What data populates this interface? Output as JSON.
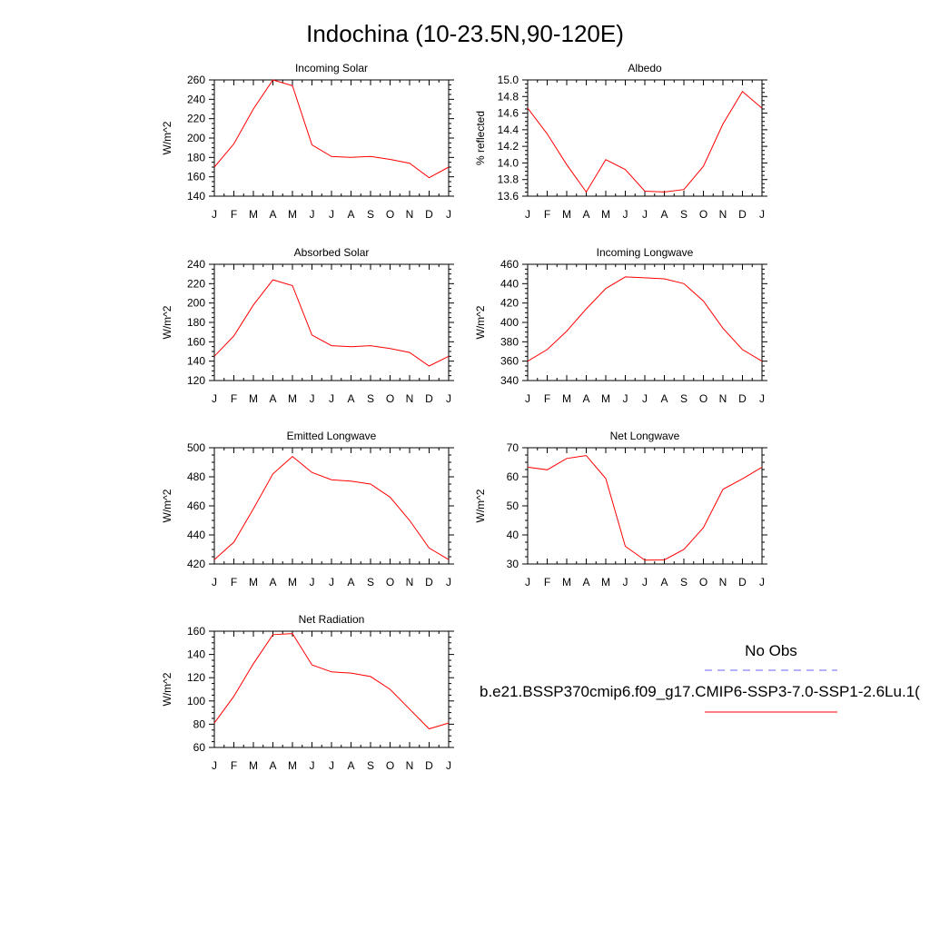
{
  "page_title": "Indochina (10-23.5N,90-120E)",
  "legend": {
    "obs_label": "No Obs",
    "model_label": "b.e21.BSSP370cmip6.f09_g17.CMIP6-SSP3-7.0-SSP1-2.6Lu.1(",
    "obs_color": "#6666ff",
    "model_color": "#ff0000"
  },
  "chart_data": [
    {
      "type": "line",
      "title": "Incoming Solar",
      "ylabel": "W/m^2",
      "categories": [
        "J",
        "F",
        "M",
        "A",
        "M",
        "J",
        "J",
        "A",
        "S",
        "O",
        "N",
        "D",
        "J"
      ],
      "ylim": [
        140,
        260
      ],
      "yticks": [
        140,
        160,
        180,
        200,
        220,
        240,
        260
      ],
      "ytick_labels": [
        "140",
        "160",
        "180",
        "200",
        "220",
        "240",
        "260"
      ],
      "values": [
        170,
        194,
        230,
        260,
        254,
        193,
        181,
        180,
        181,
        178,
        174,
        159,
        170
      ]
    },
    {
      "type": "line",
      "title": "Albedo",
      "ylabel": "% reflected",
      "categories": [
        "J",
        "F",
        "M",
        "A",
        "M",
        "J",
        "J",
        "A",
        "S",
        "O",
        "N",
        "D",
        "J"
      ],
      "ylim": [
        13.6,
        15.0
      ],
      "yticks": [
        13.6,
        13.8,
        14.0,
        14.2,
        14.4,
        14.6,
        14.8,
        15.0
      ],
      "ytick_labels": [
        "13.6",
        "13.8",
        "14.0",
        "14.2",
        "14.4",
        "14.6",
        "14.8",
        "15.0"
      ],
      "values": [
        14.66,
        14.35,
        13.98,
        13.65,
        14.04,
        13.92,
        13.66,
        13.65,
        13.68,
        13.96,
        14.47,
        14.86,
        14.66
      ]
    },
    {
      "type": "line",
      "title": "Absorbed Solar",
      "ylabel": "W/m^2",
      "categories": [
        "J",
        "F",
        "M",
        "A",
        "M",
        "J",
        "J",
        "A",
        "S",
        "O",
        "N",
        "D",
        "J"
      ],
      "ylim": [
        120,
        240
      ],
      "yticks": [
        120,
        140,
        160,
        180,
        200,
        220,
        240
      ],
      "ytick_labels": [
        "120",
        "140",
        "160",
        "180",
        "200",
        "220",
        "240"
      ],
      "values": [
        145,
        166,
        198,
        224,
        218,
        167,
        156,
        155,
        156,
        153,
        149,
        135,
        145
      ]
    },
    {
      "type": "line",
      "title": "Incoming Longwave",
      "ylabel": "W/m^2",
      "categories": [
        "J",
        "F",
        "M",
        "A",
        "M",
        "J",
        "J",
        "A",
        "S",
        "O",
        "N",
        "D",
        "J"
      ],
      "ylim": [
        340,
        460
      ],
      "yticks": [
        340,
        360,
        380,
        400,
        420,
        440,
        460
      ],
      "ytick_labels": [
        "340",
        "360",
        "380",
        "400",
        "420",
        "440",
        "460"
      ],
      "values": [
        360,
        372,
        391,
        414,
        435,
        447,
        446,
        445,
        440,
        422,
        394,
        372,
        360
      ]
    },
    {
      "type": "line",
      "title": "Emitted Longwave",
      "ylabel": "W/m^2",
      "categories": [
        "J",
        "F",
        "M",
        "A",
        "M",
        "J",
        "J",
        "A",
        "S",
        "O",
        "N",
        "D",
        "J"
      ],
      "ylim": [
        420,
        500
      ],
      "yticks": [
        420,
        440,
        460,
        480,
        500
      ],
      "ytick_labels": [
        "420",
        "440",
        "460",
        "480",
        "500"
      ],
      "values": [
        423,
        435,
        458,
        482,
        494,
        483,
        478,
        477,
        475,
        466,
        450,
        431,
        423
      ]
    },
    {
      "type": "line",
      "title": "Net Longwave",
      "ylabel": "W/m^2",
      "categories": [
        "J",
        "F",
        "M",
        "A",
        "M",
        "J",
        "J",
        "A",
        "S",
        "O",
        "N",
        "D",
        "J"
      ],
      "ylim": [
        30,
        70
      ],
      "yticks": [
        30,
        40,
        50,
        60,
        70
      ],
      "ytick_labels": [
        "30",
        "40",
        "50",
        "60",
        "70"
      ],
      "values": [
        63.3,
        62.4,
        66.3,
        67.3,
        59.4,
        36.1,
        31.3,
        31.4,
        35.0,
        42.5,
        55.7,
        59.3,
        63.3
      ]
    },
    {
      "type": "line",
      "title": "Net Radiation",
      "ylabel": "W/m^2",
      "categories": [
        "J",
        "F",
        "M",
        "A",
        "M",
        "J",
        "J",
        "A",
        "S",
        "O",
        "N",
        "D",
        "J"
      ],
      "ylim": [
        60,
        160
      ],
      "yticks": [
        60,
        80,
        100,
        120,
        140,
        160
      ],
      "ytick_labels": [
        "60",
        "80",
        "100",
        "120",
        "140",
        "160"
      ],
      "values": [
        81,
        104,
        132,
        157,
        158,
        131,
        125,
        124,
        121,
        110,
        93,
        76,
        81
      ]
    }
  ]
}
